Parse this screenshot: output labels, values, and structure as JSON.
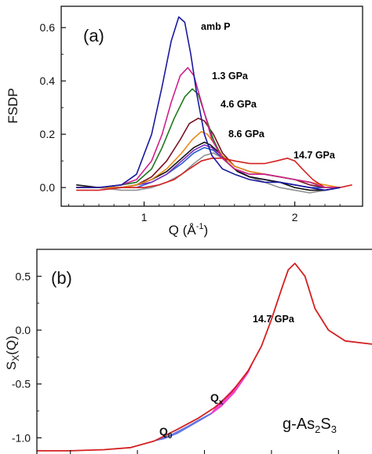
{
  "chart_data": [
    {
      "type": "line",
      "panel_label": "(a)",
      "xlabel": "Q (Å",
      "xlabel_exp": "-1",
      "xlabel_tail": ")",
      "ylabel": "FSDP",
      "xlim": [
        0.45,
        2.45
      ],
      "ylim": [
        -0.07,
        0.68
      ],
      "x_ticks": [
        1,
        2
      ],
      "x_tick_labels": [
        "1",
        "2"
      ],
      "y_ticks": [
        0.0,
        0.2,
        0.4,
        0.6
      ],
      "y_tick_labels": [
        "0.0",
        "0.2",
        "0.4",
        "0.6"
      ],
      "grid": false,
      "legend": "inline labels",
      "series": [
        {
          "name": "amb P",
          "color": "#1a1aa0",
          "label_color": "#1a1aa0",
          "x": [
            0.55,
            0.7,
            0.85,
            0.95,
            1.05,
            1.12,
            1.18,
            1.23,
            1.27,
            1.31,
            1.35,
            1.4,
            1.45,
            1.52,
            1.6,
            1.7,
            1.8,
            1.9,
            2.0,
            2.1,
            2.2,
            2.3
          ],
          "y": [
            0.0,
            0.0,
            0.01,
            0.05,
            0.2,
            0.38,
            0.55,
            0.64,
            0.62,
            0.5,
            0.35,
            0.2,
            0.12,
            0.07,
            0.05,
            0.03,
            0.02,
            0.02,
            0.01,
            0.0,
            -0.01,
            0.0
          ]
        },
        {
          "name": "1.3 GPa",
          "color": "#d0208f",
          "label_color": "#d0208f",
          "x": [
            0.55,
            0.7,
            0.85,
            0.95,
            1.05,
            1.12,
            1.18,
            1.24,
            1.29,
            1.33,
            1.38,
            1.45,
            1.52,
            1.6,
            1.7,
            1.8,
            1.9,
            2.0,
            2.1,
            2.2,
            2.3
          ],
          "y": [
            0.0,
            0.0,
            0.01,
            0.03,
            0.1,
            0.2,
            0.32,
            0.42,
            0.45,
            0.42,
            0.32,
            0.18,
            0.11,
            0.07,
            0.05,
            0.05,
            0.04,
            0.03,
            0.02,
            0.0,
            0.0
          ]
        },
        {
          "name": "4.6 GPa",
          "color": "#1f7a1f",
          "label_color": "#1f7a1f",
          "x": [
            0.55,
            0.7,
            0.85,
            0.95,
            1.05,
            1.12,
            1.2,
            1.27,
            1.32,
            1.36,
            1.4,
            1.46,
            1.52,
            1.6,
            1.7,
            1.8,
            1.9,
            2.0,
            2.1,
            2.2,
            2.3
          ],
          "y": [
            0.0,
            0.0,
            0.01,
            0.02,
            0.07,
            0.15,
            0.26,
            0.34,
            0.37,
            0.35,
            0.28,
            0.18,
            0.11,
            0.07,
            0.05,
            0.05,
            0.04,
            0.03,
            0.02,
            0.0,
            0.0
          ]
        },
        {
          "name": "8.6 GPa",
          "color": "#e88a1a",
          "label_color": "#e88a1a",
          "x": [
            0.55,
            0.7,
            0.85,
            0.95,
            1.05,
            1.15,
            1.25,
            1.32,
            1.38,
            1.42,
            1.46,
            1.52,
            1.6,
            1.7,
            1.8,
            1.9,
            2.0,
            2.1,
            2.2,
            2.3
          ],
          "y": [
            0.0,
            0.0,
            0.0,
            0.01,
            0.03,
            0.07,
            0.13,
            0.18,
            0.21,
            0.2,
            0.17,
            0.12,
            0.08,
            0.06,
            0.05,
            0.04,
            0.03,
            0.02,
            0.01,
            0.0
          ]
        },
        {
          "name": "14.7 GPa",
          "color": "#d42020",
          "label_color": "#d42020",
          "x": [
            0.55,
            0.7,
            0.85,
            1.0,
            1.1,
            1.2,
            1.3,
            1.38,
            1.45,
            1.52,
            1.6,
            1.7,
            1.8,
            1.88,
            1.95,
            2.0,
            2.05,
            2.12,
            2.2,
            2.3,
            2.38
          ],
          "y": [
            -0.01,
            -0.01,
            0.0,
            0.0,
            0.01,
            0.03,
            0.07,
            0.1,
            0.11,
            0.11,
            0.1,
            0.09,
            0.09,
            0.1,
            0.11,
            0.1,
            0.07,
            0.03,
            0.0,
            0.0,
            0.01
          ]
        },
        {
          "color": "#7a1020",
          "x": [
            0.55,
            0.7,
            0.85,
            0.95,
            1.05,
            1.15,
            1.24,
            1.3,
            1.36,
            1.4,
            1.46,
            1.52,
            1.6,
            1.7,
            1.8,
            1.9,
            2.0,
            2.1,
            2.2,
            2.3
          ],
          "y": [
            0.0,
            0.0,
            0.0,
            0.01,
            0.04,
            0.1,
            0.18,
            0.24,
            0.26,
            0.25,
            0.2,
            0.13,
            0.08,
            0.06,
            0.05,
            0.04,
            0.03,
            0.01,
            0.0,
            0.0
          ]
        },
        {
          "color": "#111111",
          "x": [
            0.55,
            0.7,
            0.85,
            0.95,
            1.05,
            1.15,
            1.25,
            1.33,
            1.4,
            1.44,
            1.5,
            1.56,
            1.62,
            1.7,
            1.8,
            1.9,
            2.0,
            2.1,
            2.2,
            2.3
          ],
          "y": [
            0.01,
            0.0,
            0.0,
            0.01,
            0.03,
            0.06,
            0.11,
            0.15,
            0.17,
            0.16,
            0.13,
            0.09,
            0.06,
            0.04,
            0.03,
            0.02,
            0.0,
            -0.01,
            -0.01,
            0.0
          ]
        },
        {
          "color": "#7b2fbf",
          "x": [
            0.55,
            0.7,
            0.85,
            0.95,
            1.05,
            1.15,
            1.25,
            1.33,
            1.4,
            1.45,
            1.52,
            1.6,
            1.7,
            1.8,
            1.9,
            2.0,
            2.1,
            2.2,
            2.3
          ],
          "y": [
            0.0,
            0.0,
            0.0,
            0.01,
            0.02,
            0.05,
            0.1,
            0.14,
            0.16,
            0.15,
            0.11,
            0.07,
            0.04,
            0.03,
            0.02,
            0.01,
            0.0,
            -0.01,
            0.0
          ]
        },
        {
          "color": "#2b5fd0",
          "x": [
            0.55,
            0.7,
            0.85,
            0.95,
            1.05,
            1.15,
            1.25,
            1.33,
            1.4,
            1.46,
            1.52,
            1.6,
            1.7,
            1.8,
            1.9,
            2.0,
            2.1,
            2.2,
            2.3
          ],
          "y": [
            0.0,
            0.0,
            0.0,
            0.0,
            0.02,
            0.05,
            0.09,
            0.13,
            0.15,
            0.14,
            0.11,
            0.07,
            0.04,
            0.03,
            0.02,
            0.01,
            0.0,
            0.0,
            0.0
          ]
        },
        {
          "color": "#909090",
          "x": [
            0.55,
            0.7,
            0.85,
            0.95,
            1.05,
            1.15,
            1.25,
            1.33,
            1.4,
            1.46,
            1.52,
            1.6,
            1.7,
            1.8,
            1.9,
            2.0,
            2.1,
            2.2,
            2.3
          ],
          "y": [
            0.0,
            0.0,
            -0.01,
            -0.01,
            0.0,
            0.02,
            0.05,
            0.09,
            0.12,
            0.13,
            0.11,
            0.07,
            0.04,
            0.02,
            0.0,
            -0.01,
            -0.02,
            -0.01,
            0.0
          ]
        }
      ]
    },
    {
      "type": "area",
      "panel_label": "(b)",
      "ylabel": "S",
      "ylabel_sub": "X",
      "ylabel_tail": "(Q)",
      "xlim": [
        0.0,
        1.0
      ],
      "ylim": [
        -1.15,
        0.75
      ],
      "y_ticks": [
        -1.0,
        -0.5,
        0.0,
        0.5
      ],
      "y_tick_labels": [
        "-1.0",
        "-0.5",
        "0.0",
        "0.5"
      ],
      "x_tick_positions": [
        0.1,
        0.3,
        0.5,
        0.7,
        0.9
      ],
      "grid": false,
      "annotation": "g-As",
      "annotation_sub1": "2",
      "annotation_mid": "S",
      "annotation_sub2": "3",
      "series": [
        {
          "name": "14.7 GPa",
          "color": "#d42020",
          "label_color": "#d42020",
          "x": [
            0.0,
            0.1,
            0.2,
            0.28,
            0.35,
            0.42,
            0.48,
            0.53,
            0.58,
            0.63,
            0.67,
            0.7,
            0.73,
            0.75,
            0.77,
            0.8,
            0.83,
            0.87,
            0.92,
            1.0
          ],
          "y": [
            -1.12,
            -1.12,
            -1.11,
            -1.09,
            -1.03,
            -0.92,
            -0.82,
            -0.72,
            -0.58,
            -0.38,
            -0.15,
            0.1,
            0.38,
            0.56,
            0.62,
            0.5,
            0.2,
            0.0,
            -0.1,
            -0.13
          ]
        }
      ],
      "shaded_regions": [
        {
          "name": "Q",
          "name_sub": "0",
          "color": "#5a6ee0",
          "upper_x": [
            0.35,
            0.4,
            0.45,
            0.49,
            0.52
          ],
          "upper_y": [
            -1.03,
            -0.97,
            -0.89,
            -0.82,
            -0.77
          ],
          "lower_x": [
            0.52,
            0.47,
            0.42,
            0.38,
            0.35
          ],
          "lower_y": [
            -0.78,
            -0.87,
            -0.96,
            -1.01,
            -1.03
          ]
        },
        {
          "name": "Q",
          "name_sub": "x",
          "color": "#ee33cc",
          "upper_x": [
            0.52,
            0.56,
            0.6,
            0.64,
            0.66
          ],
          "upper_y": [
            -0.77,
            -0.63,
            -0.5,
            -0.33,
            -0.2
          ],
          "lower_x": [
            0.66,
            0.63,
            0.59,
            0.55,
            0.52
          ],
          "lower_y": [
            -0.2,
            -0.4,
            -0.58,
            -0.71,
            -0.78
          ]
        }
      ]
    }
  ]
}
